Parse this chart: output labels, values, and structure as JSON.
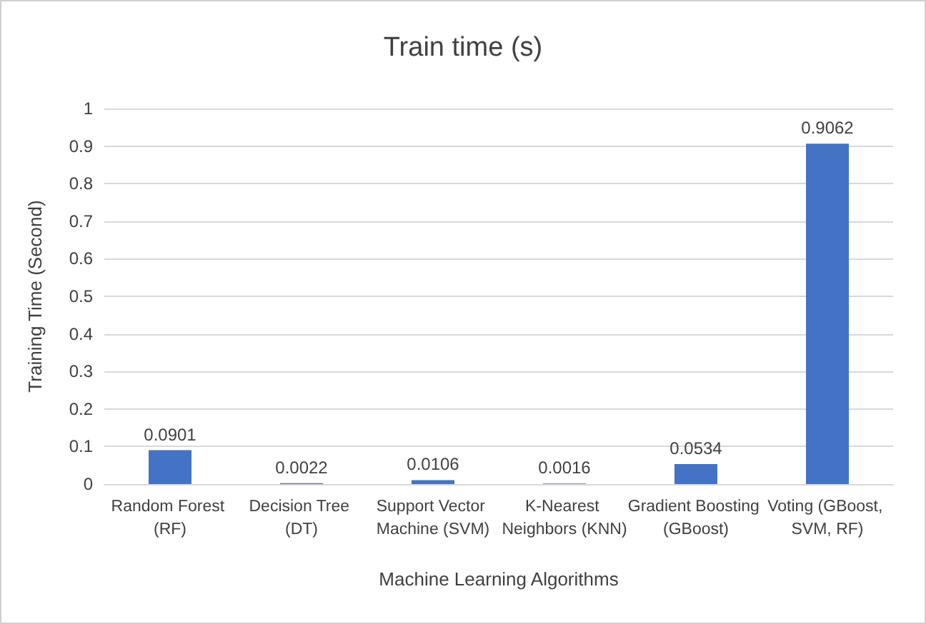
{
  "chart_data": {
    "type": "bar",
    "title": "Train time (s)",
    "xlabel": "Machine Learning Algorithms",
    "ylabel": "Training Time (Second)",
    "categories": [
      "Random Forest (RF)",
      "Decision Tree (DT)",
      "Support Vector Machine (SVM)",
      "K-Nearest Neighbors (KNN)",
      "Gradient Boosting (GBoost)",
      "Voting (GBoost, SVM, RF)"
    ],
    "values": [
      0.0901,
      0.0022,
      0.0106,
      0.0016,
      0.0534,
      0.9062
    ],
    "color": "#4472c4",
    "ylim": [
      0,
      1
    ],
    "yticks": [
      0,
      0.1,
      0.2,
      0.3,
      0.4,
      0.5,
      0.6,
      0.7,
      0.8,
      0.9,
      1
    ],
    "grid": "y",
    "data_labels": true
  }
}
